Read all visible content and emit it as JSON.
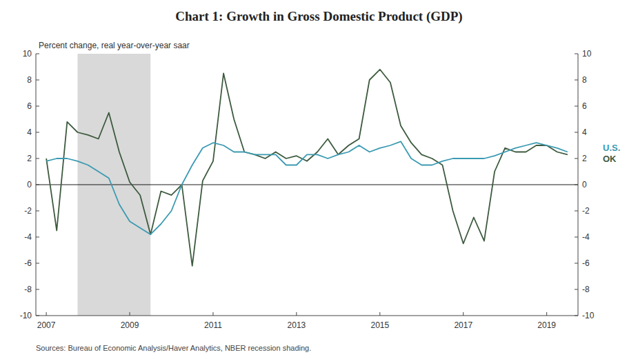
{
  "chart_data": {
    "type": "line",
    "title": "Chart 1: Growth in Gross Domestic Product (GDP)",
    "y_label": "Percent change, real year-over-year saar",
    "source": "Sources: Bureau of Economic Analysis/Haver Analytics, NBER recession shading.",
    "x": [
      2007.0,
      2007.25,
      2007.5,
      2007.75,
      2008.0,
      2008.25,
      2008.5,
      2008.75,
      2009.0,
      2009.25,
      2009.5,
      2009.75,
      2010.0,
      2010.25,
      2010.5,
      2010.75,
      2011.0,
      2011.25,
      2011.5,
      2011.75,
      2012.0,
      2012.25,
      2012.5,
      2012.75,
      2013.0,
      2013.25,
      2013.5,
      2013.75,
      2014.0,
      2014.25,
      2014.5,
      2014.75,
      2015.0,
      2015.25,
      2015.5,
      2015.75,
      2016.0,
      2016.25,
      2016.5,
      2016.75,
      2017.0,
      2017.25,
      2017.5,
      2017.75,
      2018.0,
      2018.25,
      2018.5,
      2018.75,
      2019.0,
      2019.25,
      2019.5
    ],
    "series": [
      {
        "name": "OK",
        "color": "#3d5a3e",
        "values": [
          2.0,
          -3.5,
          4.8,
          4.0,
          3.8,
          3.5,
          5.5,
          2.5,
          0.2,
          -0.8,
          -3.8,
          -0.5,
          -0.8,
          0.0,
          -6.2,
          0.3,
          1.8,
          8.5,
          5.0,
          2.5,
          2.3,
          2.0,
          2.5,
          2.0,
          2.2,
          1.8,
          2.5,
          3.5,
          2.3,
          3.0,
          3.5,
          8.0,
          8.8,
          7.8,
          4.5,
          3.2,
          2.3,
          2.0,
          1.5,
          -2.0,
          -4.5,
          -2.5,
          -4.3,
          1.0,
          2.8,
          2.5,
          2.5,
          3.0,
          3.0,
          2.5,
          2.3
        ]
      },
      {
        "name": "U.S.",
        "color": "#3a9ab2",
        "values": [
          1.8,
          2.0,
          2.0,
          1.8,
          1.5,
          1.0,
          0.5,
          -1.5,
          -2.8,
          -3.3,
          -3.8,
          -3.0,
          -2.0,
          0.0,
          1.5,
          2.8,
          3.2,
          3.0,
          2.5,
          2.5,
          2.3,
          2.3,
          2.3,
          1.5,
          1.5,
          2.3,
          2.3,
          2.0,
          2.3,
          2.5,
          3.0,
          2.5,
          2.8,
          3.0,
          3.3,
          2.0,
          1.5,
          1.5,
          1.8,
          2.0,
          2.0,
          2.0,
          2.0,
          2.2,
          2.5,
          2.8,
          3.0,
          3.2,
          3.0,
          2.8,
          2.5
        ]
      }
    ],
    "shade": {
      "x0": 2007.75,
      "x1": 2009.5,
      "color": "#d9d9d9"
    },
    "xlim": [
      2006.75,
      2019.75
    ],
    "xticks": [
      2007,
      2009,
      2011,
      2013,
      2015,
      2017,
      2019
    ],
    "ylim": [
      -10,
      10
    ],
    "yticks": [
      -10,
      -8,
      -6,
      -4,
      -2,
      0,
      2,
      4,
      6,
      8,
      10
    ],
    "y2lim": [
      -10,
      10
    ],
    "y2ticks": [
      -10,
      -8,
      -6,
      -4,
      -2,
      0,
      2,
      4,
      6,
      8,
      10
    ],
    "grid": false
  }
}
